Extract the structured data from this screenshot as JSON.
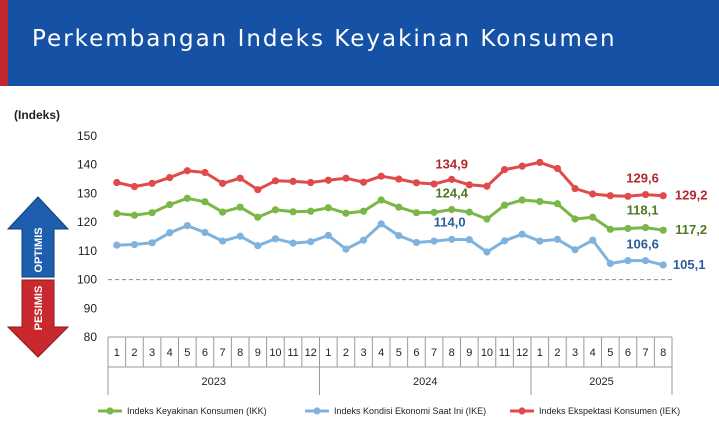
{
  "header": {
    "title": "Perkembangan Indeks Keyakinan Konsumen"
  },
  "chart_data": {
    "type": "line",
    "ylabel": "(Indeks)",
    "ylim": [
      80,
      150
    ],
    "yticks": [
      80,
      90,
      100,
      110,
      120,
      130,
      140,
      150
    ],
    "reference_line": 100,
    "categories": [
      "1",
      "2",
      "3",
      "4",
      "5",
      "6",
      "7",
      "8",
      "9",
      "10",
      "11",
      "12",
      "1",
      "2",
      "3",
      "4",
      "5",
      "6",
      "7",
      "8",
      "9",
      "10",
      "11",
      "12",
      "1",
      "2",
      "3",
      "4",
      "5",
      "6",
      "7",
      "8"
    ],
    "years": [
      {
        "label": "2023",
        "start": 0,
        "end": 11
      },
      {
        "label": "2024",
        "start": 12,
        "end": 23
      },
      {
        "label": "2025",
        "start": 24,
        "end": 31
      }
    ],
    "series": [
      {
        "name": "Indeks Keyakinan Konsumen (IKK)",
        "color": "#7ab648",
        "values": [
          123.0,
          122.4,
          123.3,
          126.1,
          128.3,
          127.1,
          123.5,
          125.2,
          121.7,
          124.3,
          123.6,
          123.8,
          125.0,
          123.1,
          123.8,
          127.7,
          125.2,
          123.3,
          123.4,
          124.4,
          123.5,
          121.1,
          125.9,
          127.7,
          127.2,
          126.4,
          121.1,
          121.7,
          117.5,
          117.8,
          118.1,
          117.2
        ]
      },
      {
        "name": "Indeks Kondisi Ekonomi Saat Ini (IKE)",
        "color": "#7fb3de",
        "values": [
          112.0,
          112.2,
          112.8,
          116.3,
          118.8,
          116.4,
          113.4,
          115.1,
          111.8,
          114.2,
          112.7,
          113.2,
          115.4,
          110.6,
          113.7,
          119.4,
          115.3,
          112.9,
          113.4,
          114.0,
          113.9,
          109.6,
          113.5,
          115.8,
          113.4,
          114.0,
          110.4,
          113.7,
          105.6,
          106.6,
          106.6,
          105.1
        ]
      },
      {
        "name": "Indeks Ekspektasi Konsumen (IEK)",
        "color": "#e04a4a",
        "values": [
          133.8,
          132.4,
          133.5,
          135.5,
          137.9,
          137.3,
          133.5,
          135.3,
          131.3,
          134.4,
          134.2,
          133.8,
          134.6,
          135.3,
          133.9,
          136.0,
          135.0,
          133.7,
          133.3,
          134.9,
          133.0,
          132.5,
          138.3,
          139.5,
          140.8,
          138.7,
          131.7,
          129.8,
          129.2,
          129.0,
          129.6,
          129.2
        ]
      }
    ],
    "data_labels": [
      {
        "series": 2,
        "index": 19,
        "text": "134,9"
      },
      {
        "series": 0,
        "index": 19,
        "text": "124,4"
      },
      {
        "series": 1,
        "index": 19,
        "text": "114,0"
      },
      {
        "series": 2,
        "index": 30,
        "text": "129,6"
      },
      {
        "series": 0,
        "index": 30,
        "text": "118,1"
      },
      {
        "series": 1,
        "index": 30,
        "text": "106,6"
      },
      {
        "series": 2,
        "index": 31,
        "text": "129,2"
      },
      {
        "series": 0,
        "index": 31,
        "text": "117,2"
      },
      {
        "series": 1,
        "index": 31,
        "text": "105,1"
      }
    ],
    "label_colors": {
      "ikk": "#4e7a1f",
      "ike": "#2a5d9b",
      "iek": "#b5262b"
    },
    "side_arrows": {
      "optimis": {
        "label": "OPTIMIS",
        "color": "#1d5fae"
      },
      "pesimis": {
        "label": "PESIMIS",
        "color": "#c8282e"
      }
    },
    "grid": false,
    "legend_position": "bottom"
  }
}
